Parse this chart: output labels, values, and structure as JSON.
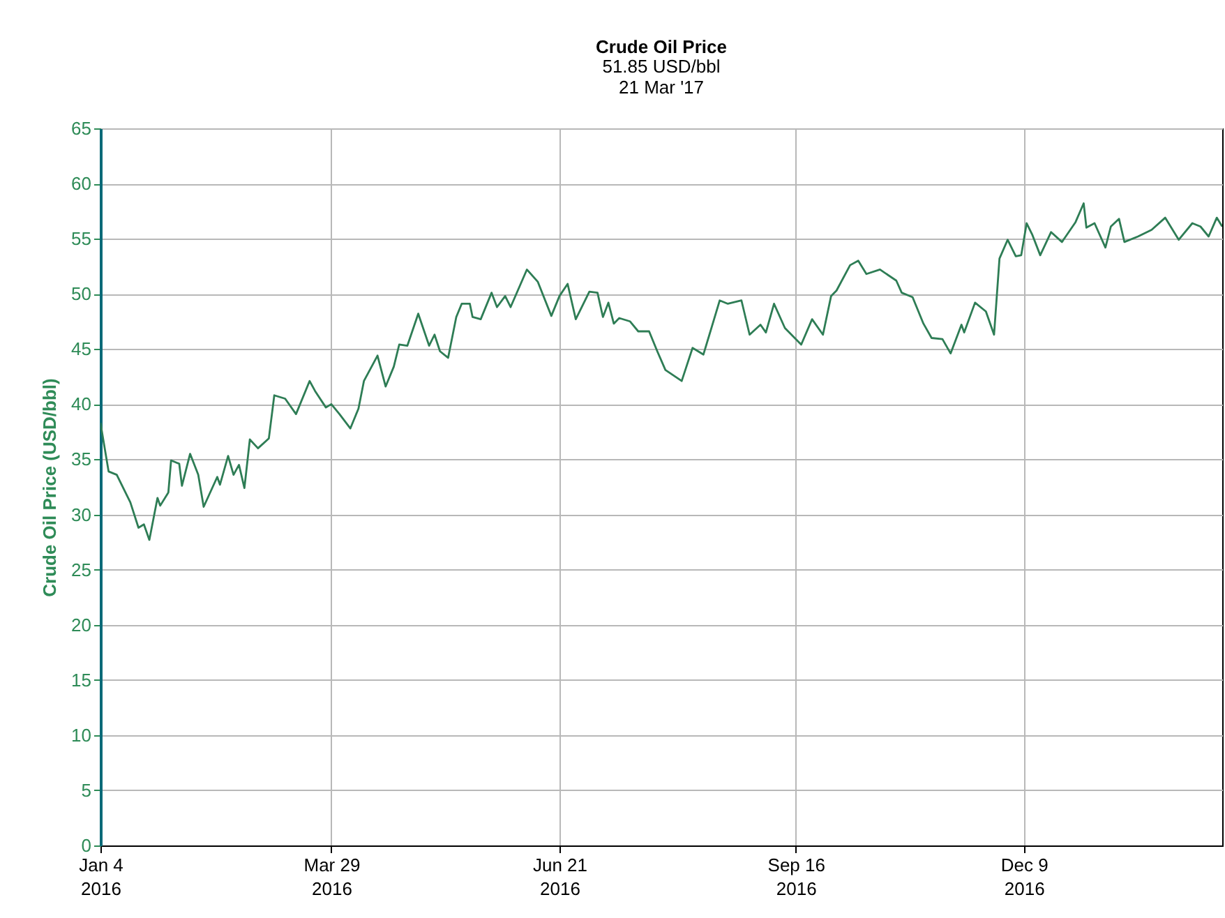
{
  "chart_data": {
    "type": "line",
    "title": "Crude Oil Price",
    "subtitle": "51.85 USD/bbl\n21 Mar '17",
    "ylabel": "Crude Oil Price (USD/bbl)",
    "x": [
      "2016-01-04",
      "2016-01-07",
      "2016-01-10",
      "2016-01-15",
      "2016-01-18",
      "2016-01-20",
      "2016-01-22",
      "2016-01-25",
      "2016-01-26",
      "2016-01-29",
      "2016-01-30",
      "2016-02-02",
      "2016-02-03",
      "2016-02-06",
      "2016-02-09",
      "2016-02-11",
      "2016-02-16",
      "2016-02-17",
      "2016-02-20",
      "2016-02-22",
      "2016-02-24",
      "2016-02-26",
      "2016-02-28",
      "2016-03-02",
      "2016-03-06",
      "2016-03-08",
      "2016-03-12",
      "2016-03-16",
      "2016-03-21",
      "2016-03-23",
      "2016-03-27",
      "2016-03-29",
      "2016-04-01",
      "2016-04-05",
      "2016-04-08",
      "2016-04-10",
      "2016-04-15",
      "2016-04-18",
      "2016-04-21",
      "2016-04-23",
      "2016-04-26",
      "2016-04-30",
      "2016-05-04",
      "2016-05-06",
      "2016-05-08",
      "2016-05-11",
      "2016-05-14",
      "2016-05-16",
      "2016-05-19",
      "2016-05-20",
      "2016-05-23",
      "2016-05-27",
      "2016-05-29",
      "2016-06-01",
      "2016-06-03",
      "2016-06-09",
      "2016-06-13",
      "2016-06-18",
      "2016-06-21",
      "2016-06-24",
      "2016-06-27",
      "2016-07-02",
      "2016-07-05",
      "2016-07-07",
      "2016-07-09",
      "2016-07-11",
      "2016-07-13",
      "2016-07-17",
      "2016-07-20",
      "2016-07-24",
      "2016-07-27",
      "2016-07-30",
      "2016-08-05",
      "2016-08-09",
      "2016-08-13",
      "2016-08-19",
      "2016-08-22",
      "2016-08-27",
      "2016-08-30",
      "2016-09-03",
      "2016-09-05",
      "2016-09-08",
      "2016-09-12",
      "2016-09-18",
      "2016-09-22",
      "2016-09-26",
      "2016-09-29",
      "2016-10-01",
      "2016-10-06",
      "2016-10-09",
      "2016-10-12",
      "2016-10-17",
      "2016-10-23",
      "2016-10-25",
      "2016-10-29",
      "2016-11-02",
      "2016-11-05",
      "2016-11-09",
      "2016-11-12",
      "2016-11-16",
      "2016-11-17",
      "2016-11-21",
      "2016-11-25",
      "2016-11-28",
      "2016-11-30",
      "2016-12-03",
      "2016-12-06",
      "2016-12-08",
      "2016-12-10",
      "2016-12-12",
      "2016-12-15",
      "2016-12-19",
      "2016-12-23",
      "2016-12-28",
      "2016-12-31",
      "2017-01-01",
      "2017-01-04",
      "2017-01-08",
      "2017-01-10",
      "2017-01-13",
      "2017-01-15",
      "2017-01-20",
      "2017-01-25",
      "2017-01-30",
      "2017-02-04",
      "2017-02-09",
      "2017-02-12",
      "2017-02-15",
      "2017-02-18",
      "2017-02-20"
    ],
    "series": [
      {
        "color": "#2e7d55",
        "values": [
          38.3,
          33.9,
          33.6,
          31.1,
          28.8,
          29.1,
          27.7,
          31.5,
          30.8,
          32.0,
          34.9,
          34.6,
          32.6,
          35.5,
          33.6,
          30.7,
          33.4,
          32.7,
          35.3,
          33.6,
          34.5,
          32.4,
          36.8,
          36.0,
          36.9,
          40.8,
          40.5,
          39.1,
          42.1,
          41.2,
          39.7,
          40.0,
          39.1,
          37.8,
          39.6,
          42.1,
          44.4,
          41.6,
          43.4,
          45.4,
          45.3,
          48.2,
          45.3,
          46.3,
          44.8,
          44.2,
          47.9,
          49.1,
          49.1,
          47.9,
          47.7,
          50.1,
          48.8,
          49.8,
          48.8,
          52.2,
          51.1,
          48.0,
          49.8,
          50.9,
          47.7,
          50.2,
          50.1,
          47.9,
          49.2,
          47.3,
          47.8,
          47.5,
          46.6,
          46.6,
          44.8,
          43.1,
          42.1,
          45.1,
          44.5,
          49.4,
          49.1,
          49.4,
          46.3,
          47.2,
          46.5,
          49.1,
          46.9,
          45.4,
          47.7,
          46.3,
          49.8,
          50.3,
          52.6,
          53.0,
          51.8,
          52.2,
          51.2,
          50.1,
          49.7,
          47.3,
          46.0,
          45.9,
          44.6,
          47.2,
          46.5,
          49.2,
          48.4,
          46.3,
          53.2,
          54.9,
          53.4,
          53.5,
          56.4,
          55.4,
          53.5,
          55.6,
          54.7,
          56.5,
          58.2,
          56.0,
          56.4,
          54.2,
          56.1,
          56.8,
          54.7,
          55.2,
          55.8,
          56.9,
          54.9,
          56.4,
          56.1,
          55.2,
          56.9,
          56.1
        ]
      }
    ],
    "xlim": [
      "2016-01-04",
      "2017-02-20"
    ],
    "xticks": [
      {
        "value": "2016-01-04",
        "label": "Jan 4\n2016"
      },
      {
        "value": "2016-03-29",
        "label": "Mar 29\n2016"
      },
      {
        "value": "2016-06-21",
        "label": "Jun 21\n2016"
      },
      {
        "value": "2016-09-16",
        "label": "Sep 16\n2016"
      },
      {
        "value": "2016-12-09",
        "label": "Dec 9\n2016"
      }
    ],
    "ylim": [
      0,
      65
    ],
    "yticks": [
      0,
      5,
      10,
      15,
      20,
      25,
      30,
      35,
      40,
      45,
      50,
      55,
      60,
      65
    ],
    "grid": true,
    "marker": "none",
    "line_style": "solid"
  }
}
